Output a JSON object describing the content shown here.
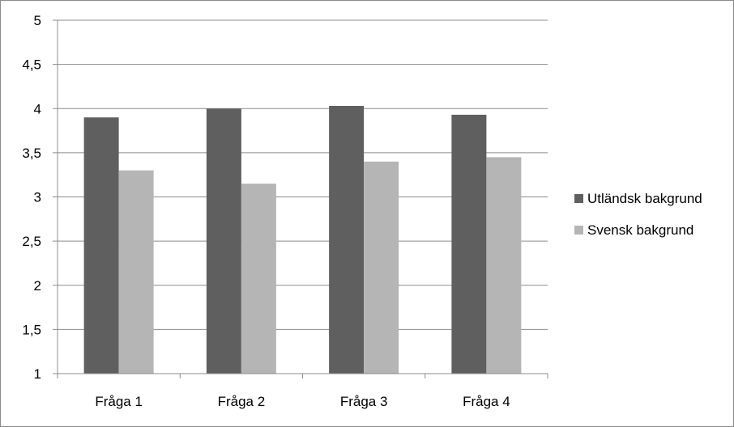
{
  "chart_data": {
    "type": "bar",
    "categories": [
      "Fråga 1",
      "Fråga 2",
      "Fråga 3",
      "Fråga 4"
    ],
    "series": [
      {
        "name": "Utländsk bakgrund",
        "values": [
          3.9,
          4.0,
          4.03,
          3.93
        ],
        "color": "#5f5f5f"
      },
      {
        "name": "Svensk bakgrund",
        "values": [
          3.3,
          3.15,
          3.4,
          3.45
        ],
        "color": "#b5b5b5"
      }
    ],
    "yticks": [
      "1",
      "1,5",
      "2",
      "2,5",
      "3",
      "3,5",
      "4",
      "4,5",
      "5"
    ],
    "ylim": [
      1,
      5
    ],
    "grid": true,
    "legend_position": "right"
  }
}
